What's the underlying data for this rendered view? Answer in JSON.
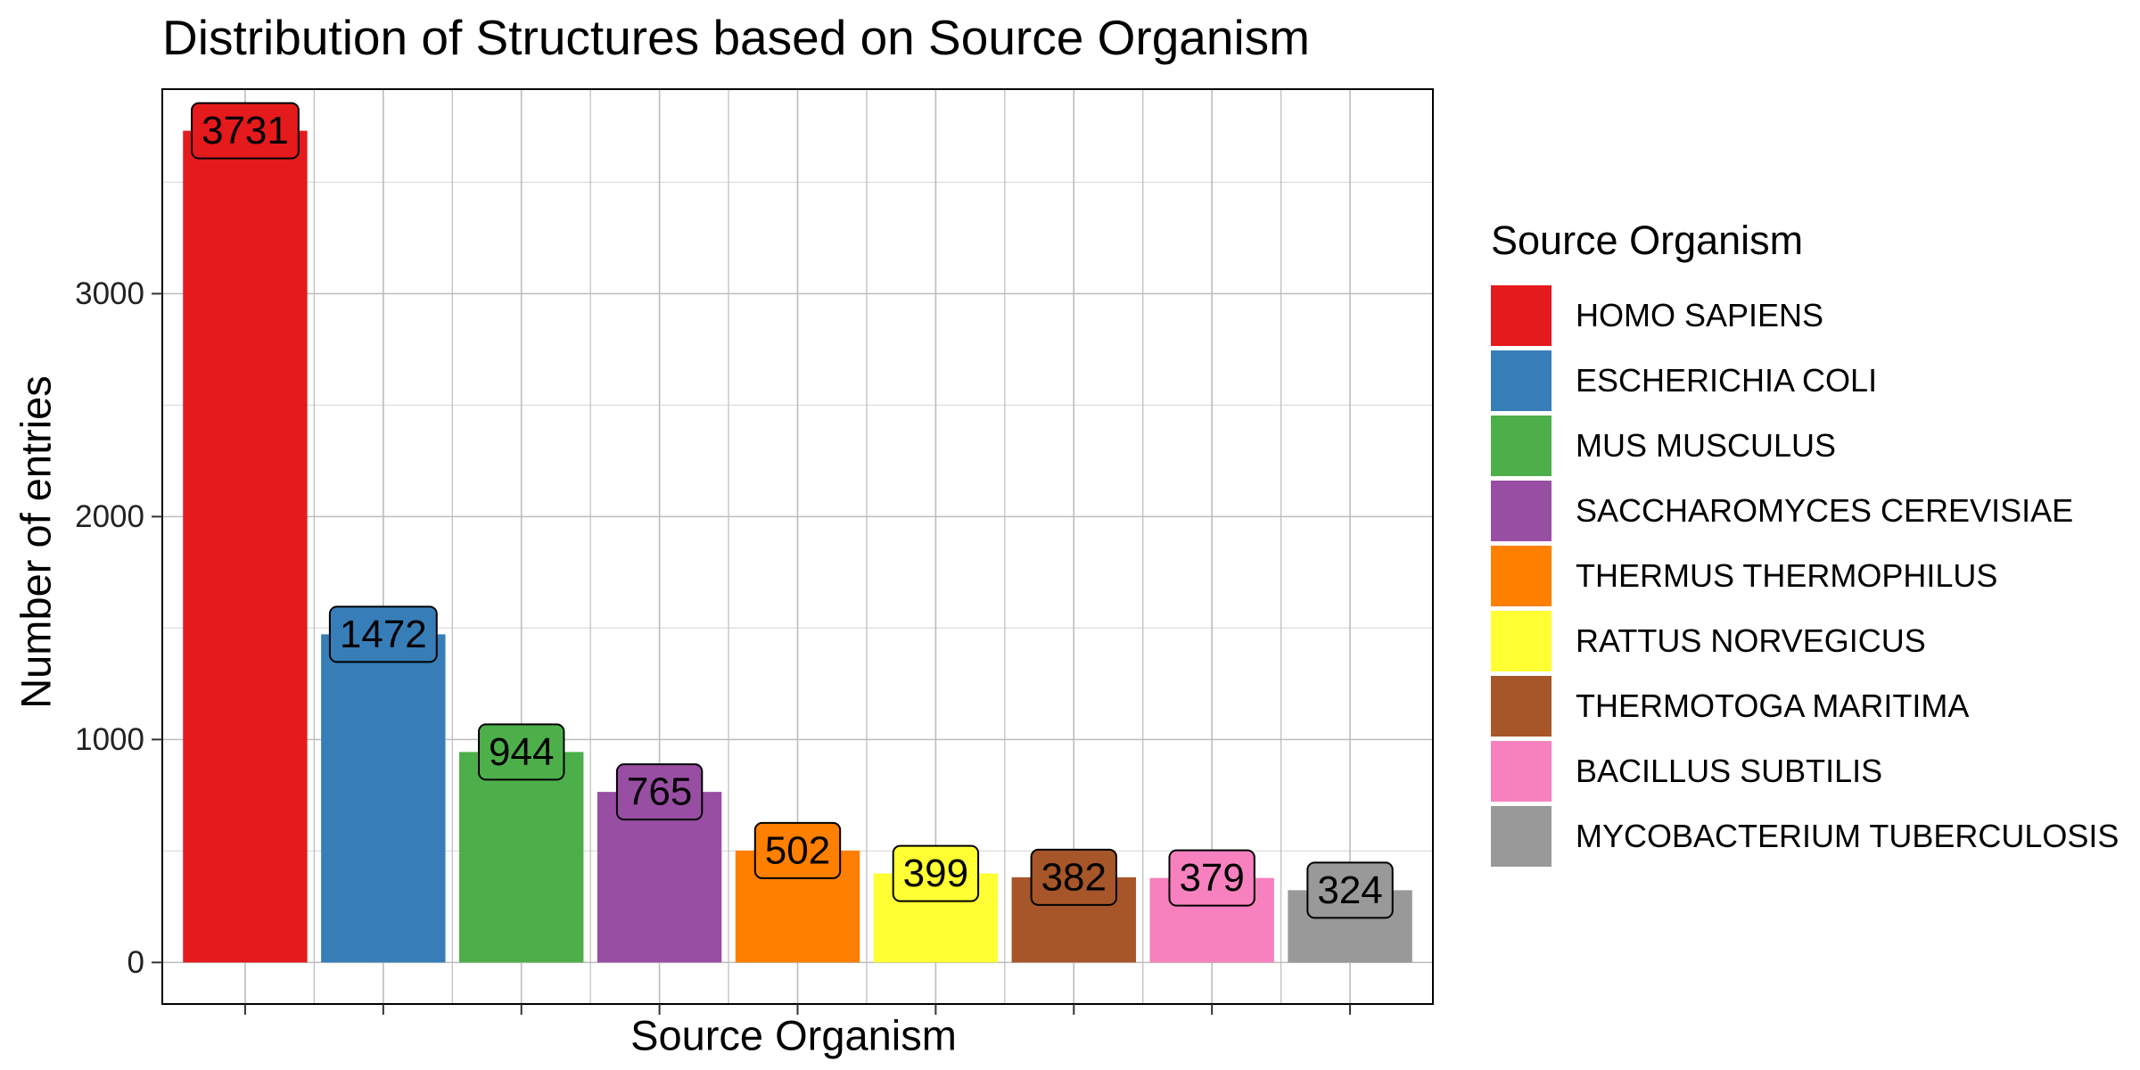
{
  "chart_data": {
    "type": "bar",
    "title": "Distribution of Structures based on Source Organism",
    "xlabel": "Source Organism",
    "ylabel": "Number of entries",
    "categories": [
      "HOMO SAPIENS",
      "ESCHERICHIA COLI",
      "MUS MUSCULUS",
      "SACCHAROMYCES CEREVISIAE",
      "THERMUS THERMOPHILUS",
      "RATTUS NORVEGICUS",
      "THERMOTOGA MARITIMA",
      "BACILLUS SUBTILIS",
      "MYCOBACTERIUM TUBERCULOSIS"
    ],
    "values": [
      3731,
      1472,
      944,
      765,
      502,
      399,
      382,
      379,
      324
    ],
    "colors": [
      "#E41A1C",
      "#377EB8",
      "#4DAF4A",
      "#984EA3",
      "#FF7F00",
      "#FFFF33",
      "#A65628",
      "#F781BF",
      "#999999"
    ],
    "ylim": [
      0,
      3731
    ],
    "y_ticks": [
      0,
      1000,
      2000,
      3000
    ],
    "x_tick_labels": "none",
    "grid": true,
    "legend": {
      "title": "Source Organism",
      "placement": "right"
    },
    "data_labels": true
  }
}
